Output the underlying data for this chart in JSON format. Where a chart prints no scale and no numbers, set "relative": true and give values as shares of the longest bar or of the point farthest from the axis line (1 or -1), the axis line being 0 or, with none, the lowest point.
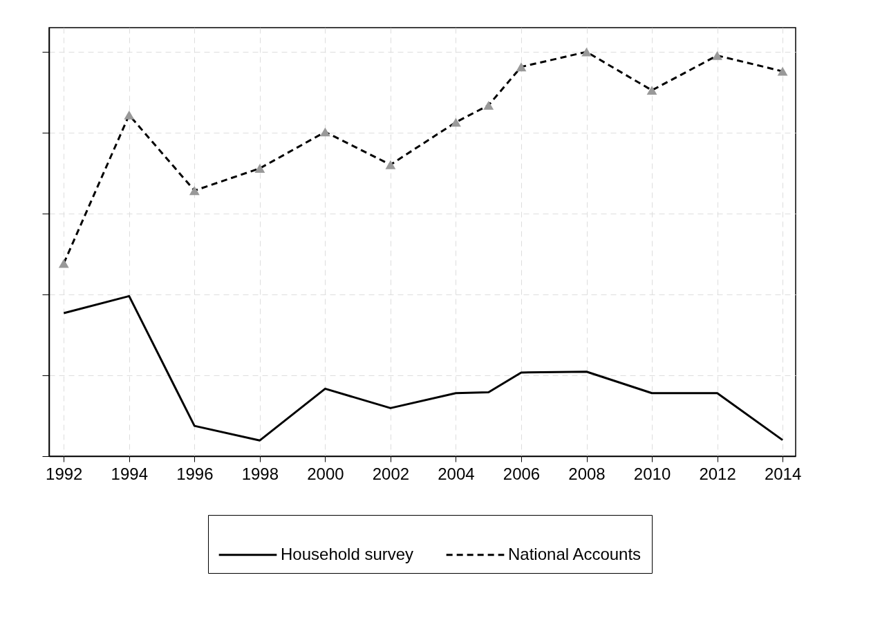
{
  "chart_data": {
    "type": "line",
    "relative": true,
    "x": [
      1992,
      1994,
      1996,
      1998,
      2000,
      2002,
      2004,
      2005,
      2006,
      2008,
      2010,
      2012,
      2014
    ],
    "xlim": [
      1991.55,
      2014.4
    ],
    "xticks": [
      1992,
      1994,
      1996,
      1998,
      2000,
      2002,
      2004,
      2006,
      2008,
      2010,
      2012,
      2014
    ],
    "tick_labels": "x",
    "grid": true,
    "legend": "bottom",
    "series": [
      {
        "name": "Household survey",
        "color": "#000000",
        "line_style": "solid",
        "marker": "none",
        "values": [
          0.354,
          0.396,
          0.075,
          0.039,
          0.167,
          0.119,
          0.156,
          0.158,
          0.207,
          0.209,
          0.156,
          0.156,
          0.04
        ]
      },
      {
        "name": "National Accounts",
        "color": "#000000",
        "line_style": "dashed",
        "marker": "triangle",
        "values": [
          0.477,
          0.844,
          0.657,
          0.712,
          0.802,
          0.721,
          0.826,
          0.868,
          0.963,
          1,
          0.905,
          0.991,
          0.952
        ]
      }
    ]
  }
}
